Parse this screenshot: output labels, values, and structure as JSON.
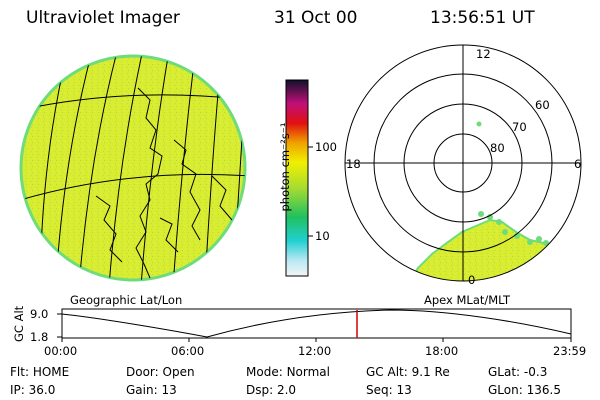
{
  "header": {
    "instrument": "Ultraviolet Imager",
    "date": "31 Oct 00",
    "time": "13:56:51 UT"
  },
  "geo_panel": {
    "label": "Geographic Lat/Lon"
  },
  "colorbar": {
    "unit_label": "photon cm⁻²s⁻¹",
    "tick_labels": [
      "100",
      "10"
    ],
    "scale": "log"
  },
  "polar_panel": {
    "label": "Apex MLat/MLT",
    "mlt_labels": {
      "top": "12",
      "left": "18",
      "right": "6",
      "bottom": "0"
    },
    "mlat_labels": [
      "60",
      "70",
      "80"
    ]
  },
  "altitude_plot": {
    "ylabel": "GC Alt",
    "y_ticks": [
      "9.0",
      "1.8"
    ],
    "x_ticks": [
      "00:00",
      "06:00",
      "12:00",
      "18:00",
      "23:59"
    ],
    "current_time_marker": "13:56:51",
    "marker_color": "#d00000"
  },
  "status": {
    "row1": [
      {
        "key": "Flt:",
        "value": "HOME"
      },
      {
        "key": "Door:",
        "value": "Open"
      },
      {
        "key": "Mode:",
        "value": "Normal"
      },
      {
        "key": "GC Alt:",
        "value": "9.1 Re"
      },
      {
        "key": "GLat:",
        "value": "-0.3"
      }
    ],
    "row2": [
      {
        "key": "IP:",
        "value": "36.0"
      },
      {
        "key": "Gain:",
        "value": "13"
      },
      {
        "key": "Dsp:",
        "value": "2.0"
      },
      {
        "key": "Seq:",
        "value": "13"
      },
      {
        "key": "GLon:",
        "value": "136.5"
      }
    ]
  },
  "colors": {
    "image_fill": "#d8ec32",
    "image_edge": "#6edc7a"
  }
}
